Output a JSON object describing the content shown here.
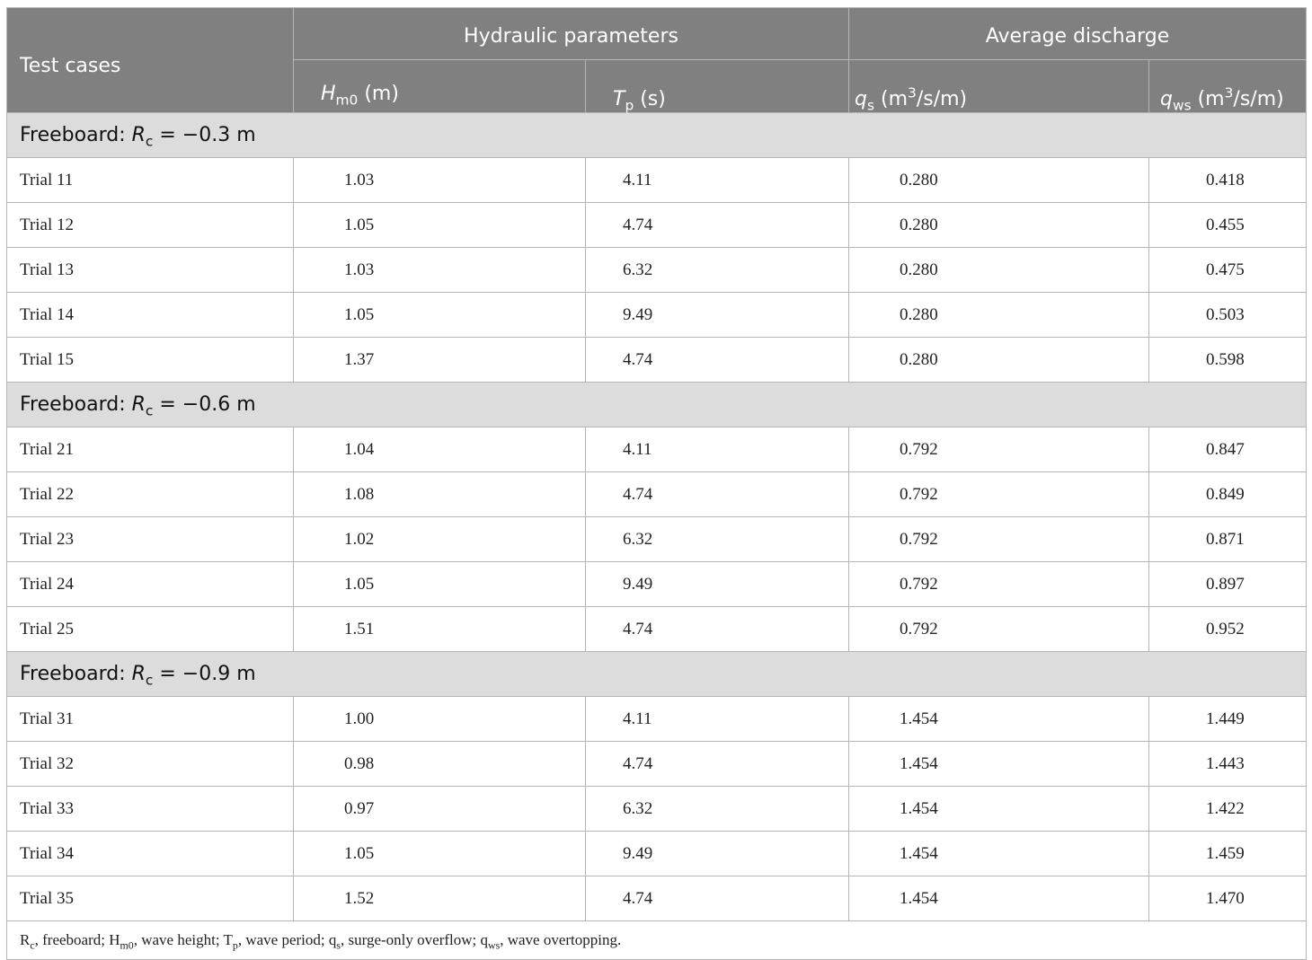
{
  "header": {
    "test_cases": "Test cases",
    "hydraulic_parameters": "Hydraulic parameters",
    "average_discharge": "Average discharge",
    "hm0": {
      "symbol": "H",
      "sub": "m0",
      "unit": " (m)"
    },
    "tp": {
      "symbol": "T",
      "sub": "p",
      "unit": " (s)"
    },
    "qs": {
      "symbol": "q",
      "sub": "s",
      "unit_pre": " (m",
      "sup": "3",
      "unit_post": "/s/m)"
    },
    "qws": {
      "symbol": "q",
      "sub": "ws",
      "unit_pre": " (m",
      "sup": "3",
      "unit_post": "/s/m)"
    }
  },
  "groups": [
    {
      "prefix": "Freeboard: ",
      "symbol": "R",
      "sub": "c",
      "value": " = −0.3 m",
      "rows": [
        {
          "trial": "Trial 11",
          "hm0": "1.03",
          "tp": "4.11",
          "qs": "0.280",
          "qws": "0.418"
        },
        {
          "trial": "Trial 12",
          "hm0": "1.05",
          "tp": "4.74",
          "qs": "0.280",
          "qws": "0.455"
        },
        {
          "trial": "Trial 13",
          "hm0": "1.03",
          "tp": "6.32",
          "qs": "0.280",
          "qws": "0.475"
        },
        {
          "trial": "Trial 14",
          "hm0": "1.05",
          "tp": "9.49",
          "qs": "0.280",
          "qws": "0.503"
        },
        {
          "trial": "Trial 15",
          "hm0": "1.37",
          "tp": "4.74",
          "qs": "0.280",
          "qws": "0.598"
        }
      ]
    },
    {
      "prefix": "Freeboard: ",
      "symbol": "R",
      "sub": "c",
      "value": " = −0.6 m",
      "rows": [
        {
          "trial": "Trial 21",
          "hm0": "1.04",
          "tp": "4.11",
          "qs": "0.792",
          "qws": "0.847"
        },
        {
          "trial": "Trial 22",
          "hm0": "1.08",
          "tp": "4.74",
          "qs": "0.792",
          "qws": "0.849"
        },
        {
          "trial": "Trial 23",
          "hm0": "1.02",
          "tp": "6.32",
          "qs": "0.792",
          "qws": "0.871"
        },
        {
          "trial": "Trial 24",
          "hm0": "1.05",
          "tp": "9.49",
          "qs": "0.792",
          "qws": "0.897"
        },
        {
          "trial": "Trial 25",
          "hm0": "1.51",
          "tp": "4.74",
          "qs": "0.792",
          "qws": "0.952"
        }
      ]
    },
    {
      "prefix": "Freeboard: ",
      "symbol": "R",
      "sub": "c",
      "value": " = −0.9 m",
      "rows": [
        {
          "trial": "Trial 31",
          "hm0": "1.00",
          "tp": "4.11",
          "qs": "1.454",
          "qws": "1.449"
        },
        {
          "trial": "Trial 32",
          "hm0": "0.98",
          "tp": "4.74",
          "qs": "1.454",
          "qws": "1.443"
        },
        {
          "trial": "Trial 33",
          "hm0": "0.97",
          "tp": "6.32",
          "qs": "1.454",
          "qws": "1.422"
        },
        {
          "trial": "Trial 34",
          "hm0": "1.05",
          "tp": "9.49",
          "qs": "1.454",
          "qws": "1.459"
        },
        {
          "trial": "Trial 35",
          "hm0": "1.52",
          "tp": "4.74",
          "qs": "1.454",
          "qws": "1.470"
        }
      ]
    }
  ],
  "footnote": [
    {
      "t": "R"
    },
    {
      "sub": "c"
    },
    {
      "t": ", freeboard; H"
    },
    {
      "sub": "m0"
    },
    {
      "t": ", wave height; T"
    },
    {
      "sub": "p"
    },
    {
      "t": ", wave period; q"
    },
    {
      "sub": "s"
    },
    {
      "t": ", surge-only overflow; q"
    },
    {
      "sub": "ws"
    },
    {
      "t": ", wave overtopping."
    }
  ]
}
